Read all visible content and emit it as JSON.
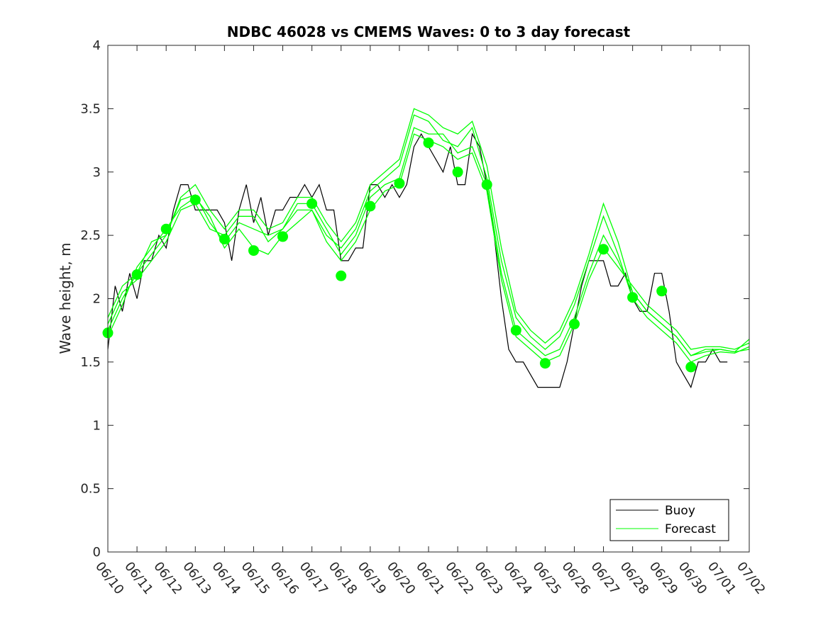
{
  "chart_data": {
    "type": "line",
    "title": "NDBC 46028 vs CMEMS Waves: 0 to 3 day forecast",
    "xlabel": "",
    "ylabel": "Wave height, m",
    "x_tick_labels": [
      "06/10",
      "06/11",
      "06/12",
      "06/13",
      "06/14",
      "06/15",
      "06/16",
      "06/17",
      "06/18",
      "06/19",
      "06/20",
      "06/21",
      "06/22",
      "06/23",
      "06/24",
      "06/25",
      "06/26",
      "06/27",
      "06/28",
      "06/29",
      "06/30",
      "07/01",
      "07/02"
    ],
    "y_tick_labels": [
      "0",
      "0.5",
      "1",
      "1.5",
      "2",
      "2.5",
      "3",
      "3.5",
      "4"
    ],
    "xlim": [
      0,
      22
    ],
    "ylim": [
      0,
      4
    ],
    "grid": false,
    "legend_position": "bottom-right",
    "colors": {
      "buoy": "#000000",
      "forecast": "#00ff00"
    },
    "series": [
      {
        "name": "Buoy",
        "style": "line",
        "x": [
          0,
          0.25,
          0.5,
          0.75,
          1,
          1.25,
          1.5,
          1.75,
          2,
          2.25,
          2.5,
          2.75,
          3,
          3.25,
          3.5,
          3.75,
          4,
          4.25,
          4.5,
          4.75,
          5,
          5.25,
          5.5,
          5.75,
          6,
          6.25,
          6.5,
          6.75,
          7,
          7.25,
          7.5,
          7.75,
          8,
          8.25,
          8.5,
          8.75,
          9,
          9.25,
          9.5,
          9.75,
          10,
          10.25,
          10.5,
          10.75,
          11,
          11.25,
          11.5,
          11.75,
          12,
          12.25,
          12.5,
          12.75,
          13,
          13.25,
          13.5,
          13.75,
          14,
          14.25,
          14.5,
          14.75,
          15,
          15.25,
          15.5,
          15.75,
          16,
          16.25,
          16.5,
          16.75,
          17,
          17.25,
          17.5,
          17.75,
          18,
          18.25,
          18.5,
          18.75,
          19,
          19.25,
          19.5,
          19.75,
          20,
          20.25,
          20.5,
          20.75,
          21,
          21.25
        ],
        "y": [
          1.6,
          2.1,
          1.9,
          2.2,
          2.0,
          2.3,
          2.3,
          2.5,
          2.4,
          2.7,
          2.9,
          2.9,
          2.7,
          2.7,
          2.7,
          2.7,
          2.6,
          2.3,
          2.7,
          2.9,
          2.6,
          2.8,
          2.5,
          2.7,
          2.7,
          2.8,
          2.8,
          2.9,
          2.8,
          2.9,
          2.7,
          2.7,
          2.3,
          2.3,
          2.4,
          2.4,
          2.9,
          2.9,
          2.8,
          2.9,
          2.8,
          2.9,
          3.2,
          3.3,
          3.2,
          3.1,
          3.0,
          3.2,
          2.9,
          2.9,
          3.3,
          3.2,
          2.9,
          2.5,
          2.0,
          1.6,
          1.5,
          1.5,
          1.4,
          1.3,
          1.3,
          1.3,
          1.3,
          1.5,
          1.8,
          2.1,
          2.3,
          2.3,
          2.3,
          2.1,
          2.1,
          2.2,
          2.0,
          1.9,
          1.9,
          2.2,
          2.2,
          1.9,
          1.5,
          1.4,
          1.3,
          1.5,
          1.5,
          1.6,
          1.5,
          1.5
        ]
      },
      {
        "name": "Forecast",
        "style": "line",
        "x": [
          0,
          0.5,
          1,
          1.5,
          2,
          2.5,
          3,
          3.5,
          4,
          4.5,
          5,
          5.5,
          6,
          6.5,
          7,
          7.5,
          8,
          8.5,
          9,
          9.5,
          10,
          10.5,
          11,
          11.5,
          12,
          12.5,
          13,
          13.5,
          14,
          14.5,
          15,
          15.5,
          16,
          16.5,
          17,
          17.5,
          18,
          18.5,
          19,
          19.5,
          20,
          20.5,
          21,
          21.5,
          22
        ],
        "y": [
          1.75,
          2.0,
          2.2,
          2.35,
          2.5,
          2.78,
          2.82,
          2.6,
          2.45,
          2.6,
          2.55,
          2.5,
          2.55,
          2.75,
          2.75,
          2.55,
          2.35,
          2.5,
          2.8,
          2.9,
          2.95,
          3.35,
          3.3,
          3.3,
          3.15,
          3.2,
          2.9,
          2.2,
          1.75,
          1.65,
          1.55,
          1.6,
          1.85,
          2.2,
          2.5,
          2.3,
          2.05,
          1.9,
          1.8,
          1.7,
          1.55,
          1.58,
          1.6,
          1.58,
          1.6
        ]
      },
      {
        "name": "",
        "style": "line",
        "x": [
          0,
          0.5,
          1,
          1.5,
          2,
          2.5,
          3,
          3.5,
          4,
          4.5,
          5,
          5.5,
          6,
          6.5,
          7,
          7.5,
          8,
          8.5,
          9,
          9.5,
          10,
          10.5,
          11,
          11.5,
          12,
          12.5,
          13,
          13.5,
          14,
          14.5,
          15,
          15.5,
          16,
          16.5,
          17,
          17.5,
          18,
          18.5,
          19,
          19.5,
          20,
          20.5,
          21,
          21.5,
          22
        ],
        "y": [
          1.8,
          2.05,
          2.15,
          2.3,
          2.45,
          2.7,
          2.75,
          2.55,
          2.5,
          2.65,
          2.65,
          2.45,
          2.55,
          2.7,
          2.7,
          2.5,
          2.4,
          2.55,
          2.85,
          2.95,
          3.05,
          3.45,
          3.4,
          3.25,
          3.2,
          3.35,
          2.95,
          2.3,
          1.85,
          1.7,
          1.6,
          1.7,
          1.95,
          2.3,
          2.65,
          2.35,
          2.0,
          1.85,
          1.75,
          1.65,
          1.5,
          1.55,
          1.58,
          1.57,
          1.62
        ]
      },
      {
        "name": "",
        "style": "line",
        "x": [
          0,
          0.5,
          1,
          1.5,
          2,
          2.5,
          3,
          3.5,
          4,
          4.5,
          5,
          5.5,
          6,
          6.5,
          7,
          7.5,
          8,
          8.5,
          9,
          9.5,
          10,
          10.5,
          11,
          11.5,
          12,
          12.5,
          13,
          13.5,
          14,
          14.5,
          15,
          15.5,
          16,
          16.5,
          17,
          17.5,
          18,
          18.5,
          19,
          19.5,
          20,
          20.5,
          21,
          21.5,
          22
        ],
        "y": [
          1.7,
          1.95,
          2.25,
          2.4,
          2.55,
          2.72,
          2.8,
          2.65,
          2.4,
          2.55,
          2.4,
          2.35,
          2.5,
          2.6,
          2.7,
          2.45,
          2.3,
          2.45,
          2.7,
          2.85,
          2.9,
          3.3,
          3.25,
          3.2,
          3.1,
          3.15,
          2.85,
          2.15,
          1.7,
          1.6,
          1.5,
          1.55,
          1.8,
          2.15,
          2.4,
          2.25,
          2.1,
          1.95,
          1.85,
          1.75,
          1.6,
          1.62,
          1.62,
          1.6,
          1.65
        ]
      },
      {
        "name": "",
        "style": "line",
        "x": [
          0,
          0.5,
          1,
          1.5,
          2,
          2.5,
          3,
          3.5,
          4,
          4.5,
          5,
          5.5,
          6,
          6.5,
          7,
          7.5,
          8,
          8.5,
          9,
          9.5,
          10,
          10.5,
          11,
          11.5,
          12,
          12.5,
          13,
          13.5,
          14,
          14.5,
          15,
          15.5,
          16,
          16.5,
          17,
          17.5,
          18,
          18.5,
          19,
          19.5,
          20,
          20.5,
          21,
          21.5,
          22
        ],
        "y": [
          1.85,
          2.1,
          2.2,
          2.45,
          2.5,
          2.8,
          2.9,
          2.7,
          2.55,
          2.7,
          2.7,
          2.55,
          2.6,
          2.8,
          2.8,
          2.6,
          2.45,
          2.6,
          2.9,
          3.0,
          3.1,
          3.5,
          3.45,
          3.35,
          3.3,
          3.4,
          3.05,
          2.4,
          1.9,
          1.75,
          1.65,
          1.75,
          2.0,
          2.35,
          2.75,
          2.45,
          2.05,
          1.9,
          1.8,
          1.7,
          1.55,
          1.6,
          1.6,
          1.58,
          1.68
        ]
      },
      {
        "name": "",
        "style": "markers",
        "x": [
          0,
          1,
          2,
          3,
          4,
          5,
          6,
          7,
          8,
          9,
          10,
          11,
          12,
          13,
          14,
          15,
          16,
          17,
          18,
          19,
          20
        ],
        "y": [
          1.73,
          2.19,
          2.55,
          2.78,
          2.47,
          2.38,
          2.49,
          2.75,
          2.18,
          2.73,
          2.91,
          3.23,
          3.0,
          2.9,
          1.75,
          1.49,
          1.8,
          2.39,
          2.01,
          2.06,
          1.46
        ]
      }
    ]
  }
}
